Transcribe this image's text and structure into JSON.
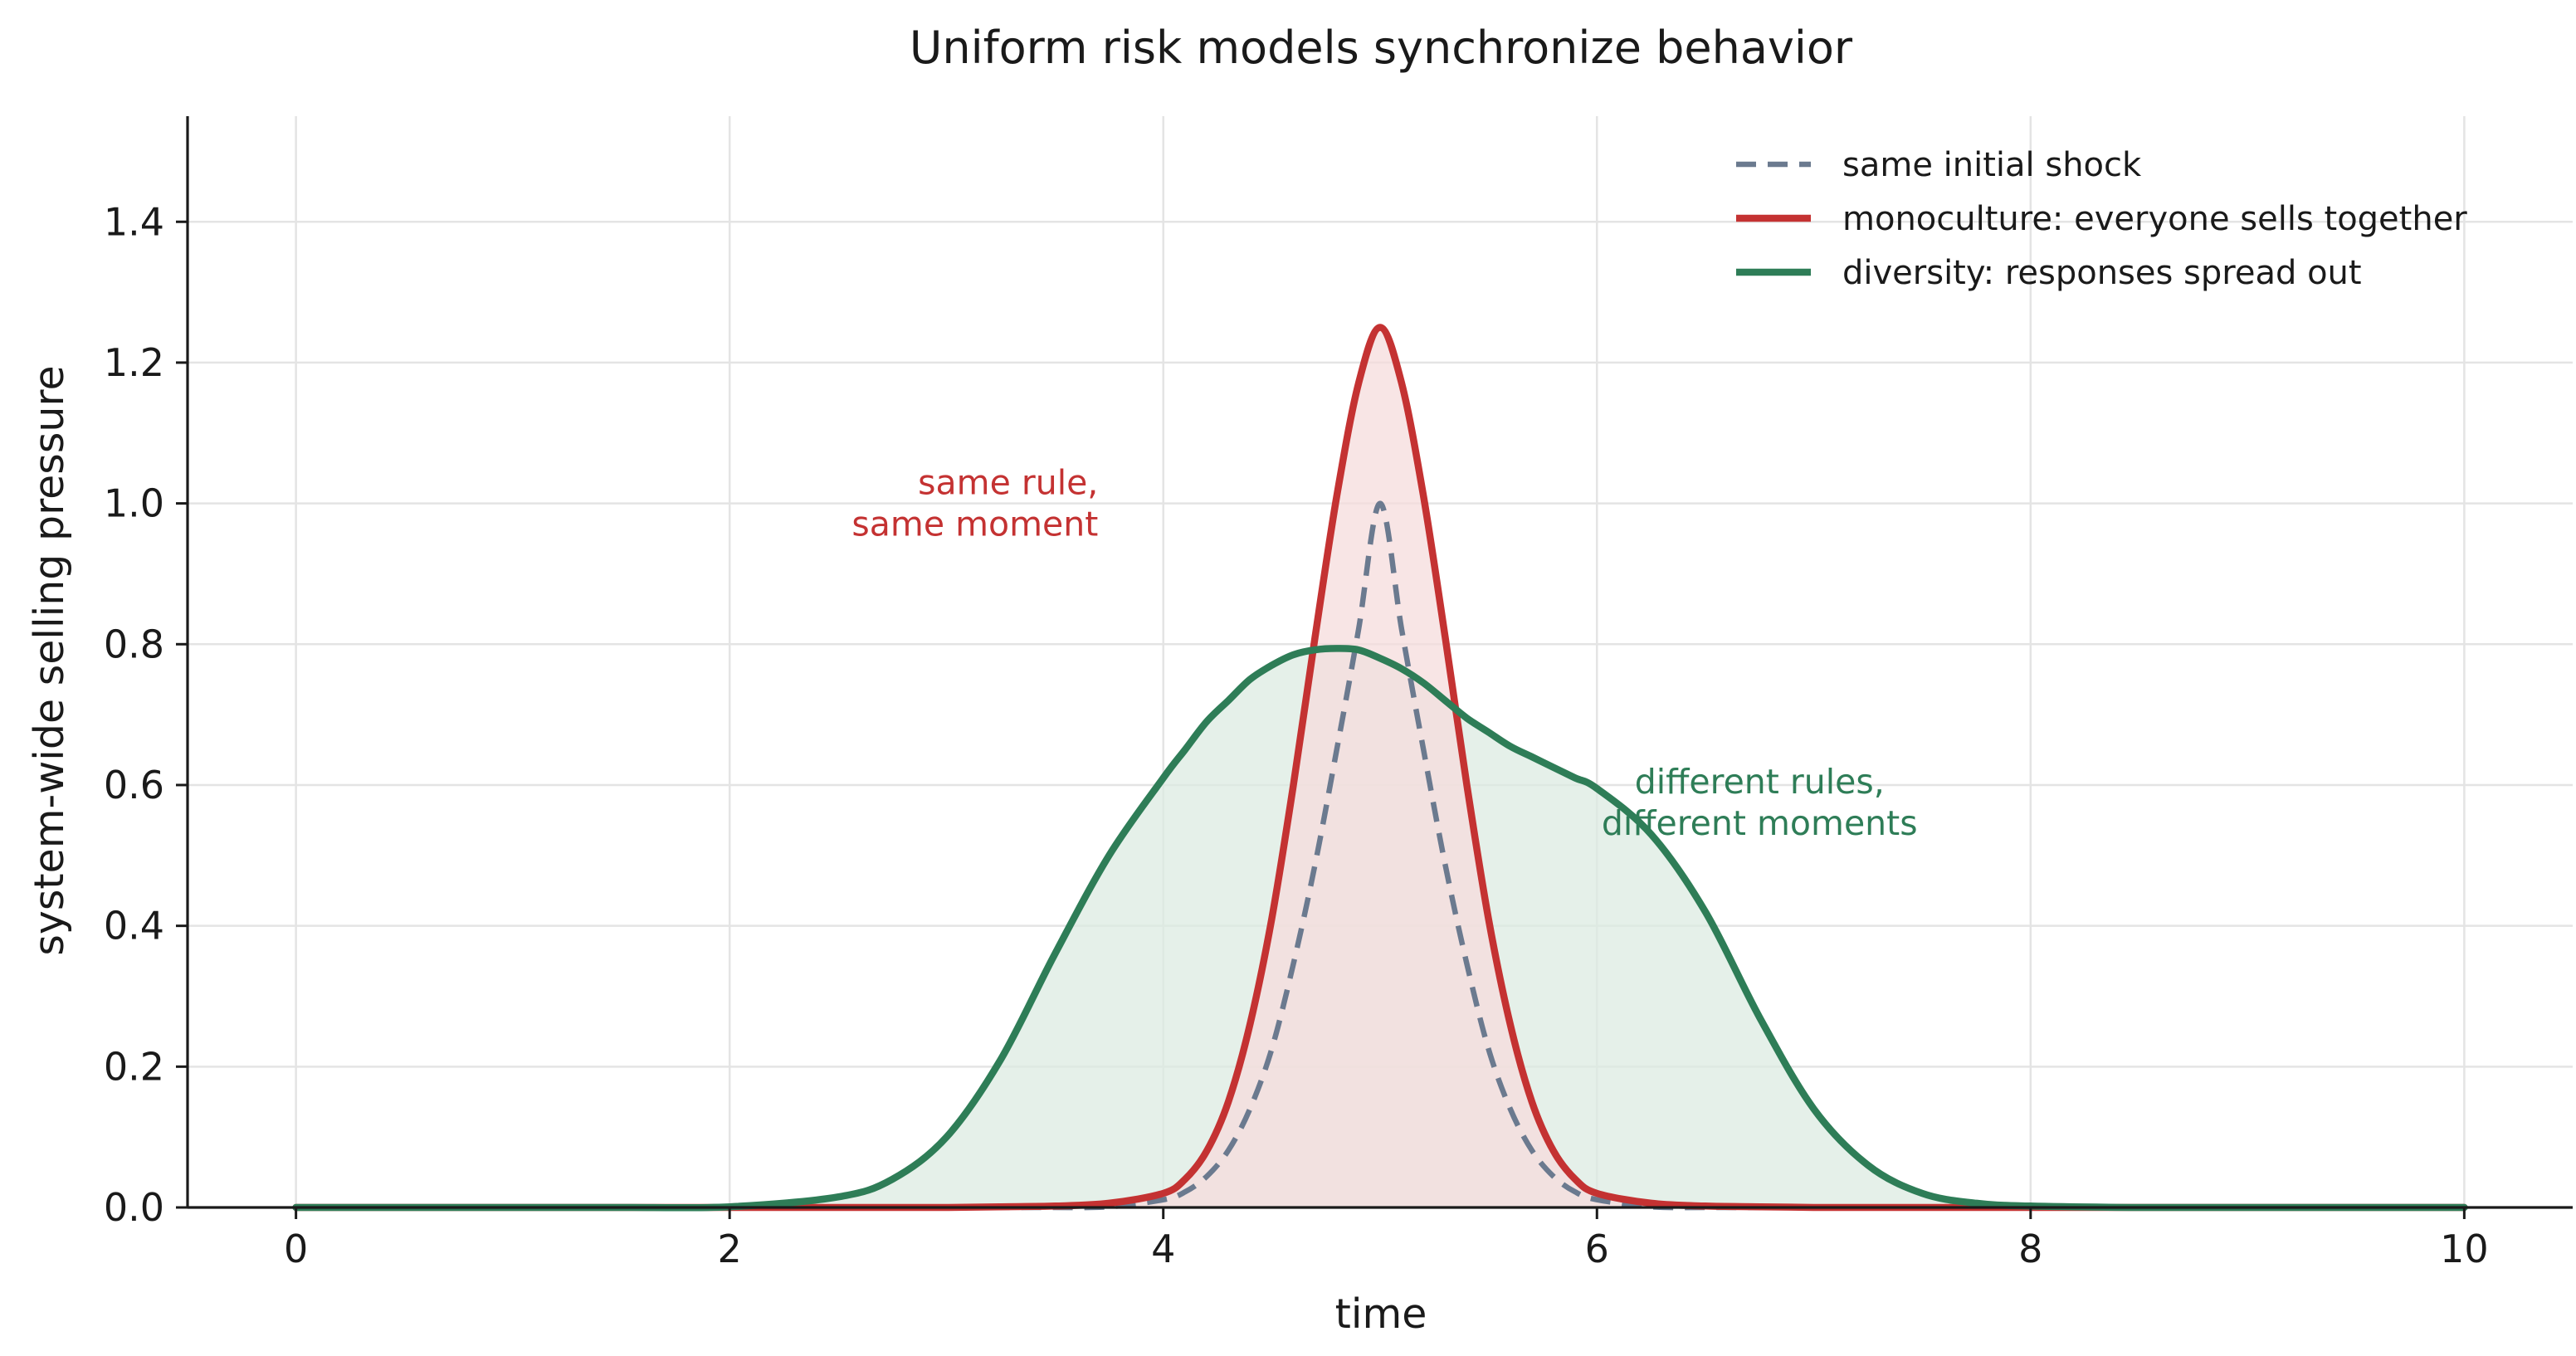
{
  "chart_data": {
    "type": "line",
    "title": "Uniform risk models synchronize behavior",
    "xlabel": "time",
    "ylabel": "system-wide selling pressure",
    "xlim": [
      -0.5,
      10.5
    ],
    "ylim": [
      0.0,
      1.55
    ],
    "xticks": [
      0,
      2,
      4,
      6,
      8,
      10
    ],
    "xtick_labels": [
      "0",
      "2",
      "4",
      "6",
      "8",
      "10"
    ],
    "yticks": [
      0.0,
      0.2,
      0.4,
      0.6,
      0.8,
      1.0,
      1.2,
      1.4
    ],
    "ytick_labels": [
      "0.0",
      "0.2",
      "0.4",
      "0.6",
      "0.8",
      "1.0",
      "1.2",
      "1.4"
    ],
    "grid": true,
    "legend_position": "top-right",
    "x": [
      0,
      0.5,
      1,
      1.5,
      2,
      2.5,
      2.75,
      3,
      3.25,
      3.5,
      3.75,
      4,
      4.1,
      4.2,
      4.3,
      4.4,
      4.5,
      4.6,
      4.7,
      4.8,
      4.9,
      5,
      5.1,
      5.2,
      5.3,
      5.4,
      5.5,
      5.6,
      5.7,
      5.8,
      5.9,
      6,
      6.25,
      6.5,
      6.75,
      7,
      7.25,
      7.5,
      7.75,
      8,
      8.5,
      9,
      9.5,
      10
    ],
    "series": [
      {
        "name": "same initial shock",
        "color": "#6b7a8f",
        "style": "dashed",
        "fill": false,
        "values": [
          0,
          0,
          0,
          0,
          0,
          0,
          0,
          0,
          0,
          0,
          0.001,
          0.011,
          0.022,
          0.044,
          0.081,
          0.14,
          0.225,
          0.346,
          0.487,
          0.65,
          0.82,
          1.0,
          0.82,
          0.65,
          0.487,
          0.346,
          0.225,
          0.14,
          0.081,
          0.044,
          0.022,
          0.011,
          0.001,
          0,
          0,
          0,
          0,
          0,
          0,
          0,
          0,
          0,
          0,
          0
        ]
      },
      {
        "name": "monoculture: everyone sells together",
        "color": "#c43232",
        "style": "solid",
        "fill": true,
        "fill_color": "#f5dcdc",
        "values": [
          0,
          0,
          0,
          0,
          0,
          0,
          0,
          0,
          0.001,
          0.002,
          0.006,
          0.02,
          0.04,
          0.08,
          0.15,
          0.26,
          0.41,
          0.6,
          0.81,
          1.01,
          1.17,
          1.25,
          1.17,
          1.01,
          0.81,
          0.6,
          0.41,
          0.26,
          0.15,
          0.08,
          0.04,
          0.02,
          0.006,
          0.002,
          0.001,
          0,
          0,
          0,
          0,
          0,
          0,
          0,
          0,
          0
        ]
      },
      {
        "name": "diversity: responses spread out",
        "color": "#2e7d57",
        "style": "solid",
        "fill": true,
        "fill_color": "#dcebe2",
        "values": [
          0,
          0,
          0,
          0,
          0.001,
          0.015,
          0.04,
          0.1,
          0.21,
          0.36,
          0.5,
          0.61,
          0.65,
          0.69,
          0.72,
          0.75,
          0.77,
          0.785,
          0.792,
          0.794,
          0.792,
          0.78,
          0.765,
          0.745,
          0.72,
          0.695,
          0.675,
          0.655,
          0.64,
          0.625,
          0.61,
          0.595,
          0.53,
          0.42,
          0.27,
          0.14,
          0.06,
          0.02,
          0.006,
          0.002,
          0,
          0,
          0,
          0
        ]
      }
    ],
    "annotations": [
      {
        "lines": [
          "same rule,",
          "same moment"
        ],
        "x": 3.7,
        "y": 1.0,
        "align": "right",
        "color": "#c43232"
      },
      {
        "lines": [
          "different rules,",
          "different moments"
        ],
        "x": 6.75,
        "y": 0.575,
        "align": "center",
        "color": "#2e7d57"
      }
    ]
  }
}
